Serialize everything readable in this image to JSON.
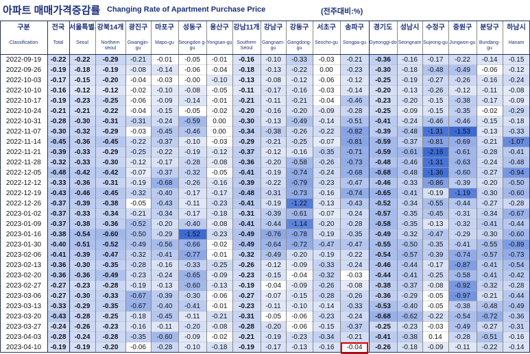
{
  "title": {
    "korean": "아파트 매매가격증감률",
    "english": "Changing Rate of Apartment Purchase Price",
    "unit": "(전주대비:%)"
  },
  "columns": [
    {
      "ko": "구분",
      "en": "Classification"
    },
    {
      "ko": "전국",
      "en": "Total"
    },
    {
      "ko": "서울특별시",
      "en": "Seoul"
    },
    {
      "ko": "강북14개",
      "en": "Northern seoul"
    },
    {
      "ko": "광진구",
      "en": "Gwangjin-gu"
    },
    {
      "ko": "마포구",
      "en": "Mapo-gu"
    },
    {
      "ko": "성동구",
      "en": "Seongdon g-gu"
    },
    {
      "ko": "용산구",
      "en": "Yongsan-gu"
    },
    {
      "ko": "강남11개",
      "en": "Southern Seoul"
    },
    {
      "ko": "강남구",
      "en": "Gangnam-gu"
    },
    {
      "ko": "강동구",
      "en": "Gangdong-gu"
    },
    {
      "ko": "서초구",
      "en": "Seocho-gu"
    },
    {
      "ko": "송파구",
      "en": "Songpa-gu"
    },
    {
      "ko": "경기도",
      "en": "Gyeonggi-do"
    },
    {
      "ko": "성남시",
      "en": "Seongnam"
    },
    {
      "ko": "수정구",
      "en": "Sujeong-gu"
    },
    {
      "ko": "중원구",
      "en": "Jungwon-gu"
    },
    {
      "ko": "분당구",
      "en": "Bundang-gu"
    },
    {
      "ko": "하남시",
      "en": "Hanam"
    }
  ],
  "rows": [
    {
      "date": "2022-09-19",
      "values": [
        "-0.22",
        "-0.22",
        "-0.29",
        "-0.21",
        "-0.01",
        "-0.05",
        "-0.01",
        "-0.16",
        "-0.10",
        "-0.33",
        "-0.03",
        "-0.21",
        "-0.36",
        "-0.16",
        "-0.17",
        "-0.22",
        "-0.14",
        "-0.15"
      ]
    },
    {
      "date": "2022-09-26",
      "values": [
        "-0.19",
        "-0.18",
        "-0.19",
        "-0.08",
        "-0.14",
        "-0.06",
        "-0.04",
        "-0.18",
        "-0.13",
        "-0.22",
        "0.00",
        "-0.23",
        "-0.30",
        "-0.18",
        "-0.48",
        "-0.49",
        "-0.06",
        "-0.12"
      ]
    },
    {
      "date": "2022-10-03",
      "values": [
        "-0.17",
        "-0.15",
        "-0.20",
        "-0.04",
        "-0.03",
        "-0.00",
        "-0.10",
        "-0.13",
        "-0.08",
        "-0.12",
        "-0.06",
        "-0.12",
        "-0.25",
        "-0.19",
        "-0.27",
        "-0.26",
        "-0.16",
        "-0.24"
      ]
    },
    {
      "date": "2022-10-10",
      "values": [
        "-0.16",
        "-0.12",
        "-0.12",
        "-0.02",
        "-0.10",
        "-0.08",
        "-0.05",
        "-0.11",
        "-0.17",
        "-0.16",
        "-0.03",
        "-0.14",
        "-0.20",
        "-0.13",
        "-0.26",
        "-0.12",
        "-0.11",
        "-0.08"
      ]
    },
    {
      "date": "2022-10-17",
      "values": [
        "-0.19",
        "-0.23",
        "-0.25",
        "-0.06",
        "-0.09",
        "-0.14",
        "-0.01",
        "-0.21",
        "-0.11",
        "-0.21",
        "-0.04",
        "-0.46",
        "-0.23",
        "-0.20",
        "-0.15",
        "-0.38",
        "-0.17",
        "-0.09"
      ]
    },
    {
      "date": "2022-10-24",
      "values": [
        "-0.21",
        "-0.21",
        "-0.22",
        "-0.04",
        "-0.15",
        "-0.05",
        "-0.02",
        "-0.20",
        "-0.16",
        "-0.20",
        "-0.09",
        "-0.28",
        "-0.25",
        "-0.09",
        "-0.15",
        "-0.35",
        "-0.02",
        "-0.29"
      ]
    },
    {
      "date": "2022-10-31",
      "values": [
        "-0.28",
        "-0.30",
        "-0.31",
        "-0.31",
        "-0.24",
        "-0.59",
        "0.00",
        "-0.30",
        "-0.13",
        "-0.49",
        "-0.14",
        "-0.51",
        "-0.41",
        "-0.24",
        "-0.46",
        "-0.46",
        "-0.15",
        "-0.18"
      ]
    },
    {
      "date": "2022-11-07",
      "values": [
        "-0.30",
        "-0.32",
        "-0.29",
        "-0.03",
        "-0.45",
        "-0.46",
        "0.00",
        "-0.34",
        "-0.38",
        "-0.26",
        "-0.22",
        "-0.82",
        "-0.39",
        "-0.48",
        "-1.31",
        "-1.53",
        "-0.13",
        "-0.33"
      ]
    },
    {
      "date": "2022-11-14",
      "values": [
        "-0.45",
        "-0.36",
        "-0.45",
        "-0.22",
        "-0.37",
        "-0.10",
        "-0.03",
        "-0.29",
        "-0.21",
        "-0.25",
        "-0.07",
        "-0.81",
        "-0.59",
        "-0.37",
        "-0.81",
        "-0.69",
        "-0.21",
        "-1.07"
      ]
    },
    {
      "date": "2022-11-21",
      "values": [
        "-0.39",
        "-0.33",
        "-0.29",
        "-0.25",
        "-0.22",
        "-0.19",
        "-0.12",
        "-0.37",
        "-0.12",
        "-0.16",
        "-0.35",
        "-0.71",
        "-0.59",
        "-0.61",
        "-2.16",
        "-0.61",
        "-0.28",
        "-0.41"
      ]
    },
    {
      "date": "2022-11-28",
      "values": [
        "-0.32",
        "-0.33",
        "-0.30",
        "-0.12",
        "-0.17",
        "-0.28",
        "-0.08",
        "-0.36",
        "-0.20",
        "-0.58",
        "-0.26",
        "-0.73",
        "-0.48",
        "-0.46",
        "-1.31",
        "-0.63",
        "-0.24",
        "-0.48"
      ]
    },
    {
      "date": "2022-12-05",
      "values": [
        "-0.48",
        "-0.42",
        "-0.42",
        "-0.07",
        "-0.37",
        "-0.32",
        "-0.05",
        "-0.41",
        "-0.19",
        "-0.74",
        "-0.24",
        "-0.68",
        "-0.68",
        "-0.48",
        "-1.36",
        "-0.60",
        "-0.27",
        "-0.94"
      ]
    },
    {
      "date": "2022-12-12",
      "values": [
        "-0.33",
        "-0.36",
        "-0.31",
        "-0.19",
        "-0.68",
        "-0.26",
        "-0.16",
        "-0.39",
        "-0.22",
        "-0.79",
        "-0.23",
        "-0.47",
        "-0.46",
        "-0.33",
        "-0.86",
        "-0.39",
        "-0.20",
        "-0.50"
      ]
    },
    {
      "date": "2022-12-19",
      "values": [
        "-0.43",
        "-0.46",
        "-0.45",
        "-0.32",
        "-0.40",
        "-0.17",
        "-0.17",
        "-0.48",
        "-0.31",
        "-0.73",
        "-0.16",
        "-0.74",
        "-0.65",
        "-0.41",
        "-0.19",
        "-1.19",
        "-0.30",
        "-0.60"
      ]
    },
    {
      "date": "2022-12-26",
      "values": [
        "-0.37",
        "-0.39",
        "-0.38",
        "-0.05",
        "-0.43",
        "-0.11",
        "-0.23",
        "-0.41",
        "-0.19",
        "-1.22",
        "-0.13",
        "-0.43",
        "-0.52",
        "-0.34",
        "-0.55",
        "-0.44",
        "-0.27",
        "-0.28"
      ]
    },
    {
      "date": "2023-01-02",
      "values": [
        "-0.37",
        "-0.33",
        "-0.34",
        "-0.21",
        "-0.34",
        "-0.17",
        "-0.18",
        "-0.31",
        "-0.39",
        "-0.61",
        "-0.07",
        "-0.24",
        "-0.57",
        "-0.35",
        "-0.45",
        "-0.31",
        "-0.34",
        "-0.67"
      ]
    },
    {
      "date": "2023-01-09",
      "values": [
        "-0.37",
        "-0.38",
        "-0.36",
        "-0.52",
        "-0.20",
        "-0.40",
        "-0.08",
        "-0.41",
        "-0.44",
        "-1.14",
        "-0.20",
        "-0.28",
        "-0.58",
        "-0.35",
        "-0.13",
        "-0.32",
        "-0.41",
        "-0.44"
      ]
    },
    {
      "date": "2023-01-16",
      "values": [
        "-0.38",
        "-0.54",
        "-0.60",
        "-0.50",
        "-0.29",
        "-1.52",
        "-0.23",
        "-0.49",
        "-0.76",
        "-0.78",
        "-0.19",
        "-0.35",
        "-0.49",
        "-0.32",
        "-0.47",
        "-0.29",
        "-0.30",
        "-0.60"
      ]
    },
    {
      "date": "2023-01-30",
      "values": [
        "-0.40",
        "-0.51",
        "-0.52",
        "-0.49",
        "-0.56",
        "-0.66",
        "-0.02",
        "-0.49",
        "-0.64",
        "-0.72",
        "-0.47",
        "-0.47",
        "-0.55",
        "-0.50",
        "-0.35",
        "-0.41",
        "-0.55",
        "-0.89"
      ]
    },
    {
      "date": "2023-02-06",
      "values": [
        "-0.41",
        "-0.39",
        "-0.47",
        "-0.32",
        "-0.41",
        "-0.77",
        "-0.01",
        "-0.32",
        "-0.49",
        "-0.20",
        "-0.19",
        "-0.22",
        "-0.54",
        "-0.57",
        "-0.39",
        "-0.74",
        "-0.57",
        "-0.73"
      ]
    },
    {
      "date": "2023-02-13",
      "values": [
        "-0.36",
        "-0.30",
        "-0.35",
        "-0.28",
        "-0.16",
        "-0.33",
        "-0.25",
        "-0.26",
        "-0.12",
        "-0.09",
        "-0.33",
        "-0.24",
        "-0.46",
        "-0.44",
        "-0.17",
        "-0.87",
        "-0.41",
        "-0.54"
      ]
    },
    {
      "date": "2023-02-20",
      "values": [
        "-0.36",
        "-0.36",
        "-0.49",
        "-0.23",
        "-0.24",
        "-0.65",
        "-0.09",
        "-0.23",
        "-0.15",
        "-0.04",
        "-0.32",
        "-0.03",
        "-0.44",
        "-0.41",
        "-0.25",
        "-0.58",
        "-0.41",
        "-0.42"
      ]
    },
    {
      "date": "2023-02-27",
      "values": [
        "-0.27",
        "-0.23",
        "-0.28",
        "-0.19",
        "-0.13",
        "-0.60",
        "-0.13",
        "-0.19",
        "-0.04",
        "-0.09",
        "-0.26",
        "-0.08",
        "-0.38",
        "-0.37",
        "-0.08",
        "-0.92",
        "-0.32",
        "-0.28"
      ]
    },
    {
      "date": "2023-03-06",
      "values": [
        "-0.27",
        "-0.30",
        "-0.33",
        "-0.67",
        "-0.39",
        "-0.30",
        "-0.06",
        "-0.27",
        "-0.07",
        "-0.15",
        "-0.28",
        "-0.26",
        "-0.36",
        "-0.29",
        "-0.05",
        "-0.97",
        "-0.21",
        "-0.44"
      ]
    },
    {
      "date": "2023-03-13",
      "values": [
        "-0.33",
        "-0.29",
        "-0.35",
        "-0.67",
        "-0.40",
        "-0.41",
        "-0.01",
        "-0.23",
        "-0.11",
        "-0.10",
        "-0.14",
        "-0.33",
        "-0.53",
        "-0.40",
        "-0.05",
        "-0.38",
        "-0.48",
        "-0.49"
      ]
    },
    {
      "date": "2023-03-20",
      "values": [
        "-0.43",
        "-0.28",
        "-0.25",
        "-0.18",
        "-0.45",
        "-0.11",
        "-0.21",
        "-0.31",
        "-0.05",
        "-0.06",
        "-0.23",
        "-0.24",
        "-0.68",
        "-0.62",
        "-0.22",
        "-0.54",
        "-0.72",
        "-0.36"
      ]
    },
    {
      "date": "2023-03-27",
      "values": [
        "-0.24",
        "-0.26",
        "-0.23",
        "-0.16",
        "-0.11",
        "-0.20",
        "-0.08",
        "-0.28",
        "-0.20",
        "-0.06",
        "-0.15",
        "-0.37",
        "-0.25",
        "-0.23",
        "-0.03",
        "-0.49",
        "-0.27",
        "-0.31"
      ]
    },
    {
      "date": "2023-04-03",
      "values": [
        "-0.28",
        "-0.24",
        "-0.28",
        "-0.35",
        "-0.60",
        "-0.09",
        "-0.02",
        "-0.21",
        "-0.19",
        "-0.23",
        "-0.34",
        "-0.21",
        "-0.41",
        "-0.38",
        "0.14",
        "-0.28",
        "-0.51",
        "-0.16"
      ]
    },
    {
      "date": "2023-04-10",
      "values": [
        "-0.19",
        "-0.19",
        "-0.20",
        "-0.06",
        "-0.28",
        "-0.10",
        "-0.18",
        "-0.19",
        "-0.17",
        "-0.13",
        "-0.16",
        "-0.04",
        "-0.26",
        "-0.18",
        "-0.09",
        "-0.11",
        "-0.22",
        "-0.14"
      ]
    }
  ],
  "highlighted_cell": {
    "row": 28,
    "column": "송파구",
    "value": "-0.04",
    "border_color": "#d80000"
  },
  "colors": {
    "header_text": "#1a2f7a",
    "cell_text": "#111111",
    "heat_light": "#eef2fb",
    "heat_dark": "#3d6bd6",
    "highlight_border": "#d80000"
  }
}
